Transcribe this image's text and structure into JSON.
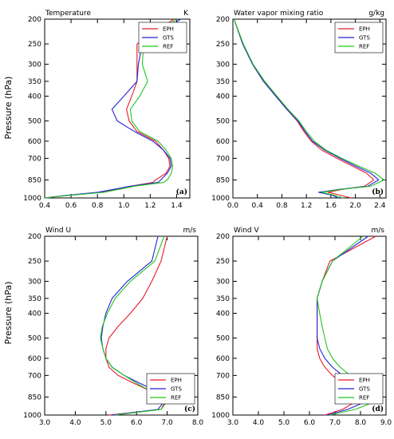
{
  "ylabel": "Pressure (hPa)",
  "colors": {
    "EPH": "#e8192c",
    "GTS": "#2323d8",
    "REF": "#22c422"
  },
  "chart_data": [
    {
      "type": "line",
      "title": "Temperature",
      "unit": "K",
      "panel_label": "(a)",
      "xlim": [
        0.4,
        1.5
      ],
      "xticks": [
        "0.4",
        "0.6",
        "0.8",
        "1.0",
        "1.2",
        "1.4"
      ],
      "xtick_values": [
        0.4,
        0.6,
        0.8,
        1.0,
        1.2,
        1.4
      ],
      "ylim": [
        1000,
        200
      ],
      "yticks": [
        200,
        250,
        300,
        350,
        400,
        500,
        600,
        700,
        850,
        1000
      ],
      "y": [
        1000,
        980,
        950,
        900,
        870,
        850,
        800,
        750,
        700,
        650,
        600,
        550,
        500,
        450,
        400,
        350,
        300,
        250,
        200
      ],
      "series": [
        {
          "name": "EPH",
          "x": [
            0.4,
            0.55,
            0.82,
            1.05,
            1.22,
            1.24,
            1.32,
            1.35,
            1.34,
            1.3,
            1.24,
            1.1,
            1.04,
            1.02,
            1.06,
            1.1,
            1.1,
            1.1,
            1.38
          ]
        },
        {
          "name": "GTS",
          "x": [
            0.4,
            0.54,
            0.8,
            1.05,
            1.26,
            1.28,
            1.33,
            1.36,
            1.35,
            1.3,
            1.22,
            1.08,
            0.95,
            0.91,
            1.0,
            1.1,
            1.11,
            1.14,
            1.43
          ]
        },
        {
          "name": "REF",
          "x": [
            0.4,
            0.56,
            0.85,
            1.08,
            1.3,
            1.33,
            1.36,
            1.37,
            1.36,
            1.32,
            1.26,
            1.12,
            1.06,
            1.05,
            1.12,
            1.18,
            1.14,
            1.15,
            1.4
          ]
        }
      ]
    },
    {
      "type": "line",
      "title": "Water vapor mixing ratio",
      "unit": "g/kg",
      "panel_label": "(b)",
      "xlim": [
        0.0,
        2.5
      ],
      "xticks": [
        "0.0",
        "0.4",
        "0.8",
        "1.2",
        "1.6",
        "2.0",
        "2.4"
      ],
      "xtick_values": [
        0.0,
        0.4,
        0.8,
        1.2,
        1.6,
        2.0,
        2.4
      ],
      "ylim": [
        1000,
        200
      ],
      "yticks": [
        200,
        250,
        300,
        350,
        400,
        500,
        600,
        700,
        850,
        1000
      ],
      "y": [
        1000,
        975,
        950,
        925,
        900,
        850,
        800,
        750,
        700,
        650,
        600,
        550,
        500,
        450,
        400,
        350,
        300,
        250,
        200
      ],
      "series": [
        {
          "name": "EPH",
          "x": [
            1.93,
            1.75,
            1.55,
            1.8,
            2.15,
            2.3,
            2.18,
            1.95,
            1.7,
            1.45,
            1.28,
            1.16,
            1.05,
            0.88,
            0.7,
            0.5,
            0.32,
            0.16,
            0.02
          ]
        },
        {
          "name": "GTS",
          "x": [
            1.72,
            1.62,
            1.4,
            1.75,
            2.2,
            2.38,
            2.25,
            2.0,
            1.75,
            1.5,
            1.3,
            1.18,
            1.06,
            0.88,
            0.7,
            0.5,
            0.32,
            0.16,
            0.02
          ]
        },
        {
          "name": "REF",
          "x": [
            1.8,
            1.65,
            1.45,
            1.78,
            2.25,
            2.47,
            2.32,
            2.05,
            1.78,
            1.52,
            1.33,
            1.2,
            1.08,
            0.9,
            0.72,
            0.52,
            0.33,
            0.17,
            0.02
          ]
        }
      ]
    },
    {
      "type": "line",
      "title": "Wind U",
      "unit": "m/s",
      "panel_label": "(c)",
      "xlim": [
        3.0,
        8.0
      ],
      "xticks": [
        "3.0",
        "4.0",
        "5.0",
        "6.0",
        "7.0",
        "8.0"
      ],
      "xtick_values": [
        3.0,
        4.0,
        5.0,
        6.0,
        7.0,
        8.0
      ],
      "ylim": [
        1000,
        200
      ],
      "yticks": [
        200,
        250,
        300,
        350,
        400,
        500,
        600,
        700,
        850,
        1000
      ],
      "y": [
        1000,
        950,
        900,
        850,
        800,
        750,
        700,
        650,
        600,
        550,
        500,
        450,
        400,
        350,
        300,
        250,
        200
      ],
      "series": [
        {
          "name": "EPH",
          "x": [
            5.1,
            6.8,
            6.9,
            6.8,
            6.4,
            5.9,
            5.4,
            5.1,
            5.0,
            5.0,
            5.1,
            5.4,
            5.8,
            6.2,
            6.5,
            6.8,
            7.0
          ]
        },
        {
          "name": "GTS",
          "x": [
            5.2,
            6.7,
            6.85,
            6.9,
            6.6,
            6.1,
            5.6,
            5.2,
            5.0,
            4.9,
            4.85,
            4.9,
            5.0,
            5.2,
            5.7,
            6.5,
            6.7
          ]
        },
        {
          "name": "REF",
          "x": [
            5.3,
            6.8,
            6.95,
            6.7,
            6.4,
            6.0,
            5.6,
            5.2,
            5.0,
            4.9,
            4.82,
            4.88,
            5.05,
            5.3,
            5.8,
            6.6,
            6.9
          ]
        }
      ]
    },
    {
      "type": "line",
      "title": "Wind V",
      "unit": "m/s",
      "panel_label": "(d)",
      "xlim": [
        3.0,
        9.0
      ],
      "xticks": [
        "3.0",
        "4.0",
        "5.0",
        "6.0",
        "7.0",
        "8.0",
        "9.0"
      ],
      "xtick_values": [
        3.0,
        4.0,
        5.0,
        6.0,
        7.0,
        8.0,
        9.0
      ],
      "ylim": [
        1000,
        200
      ],
      "yticks": [
        200,
        250,
        300,
        350,
        400,
        500,
        600,
        700,
        850,
        1000
      ],
      "y": [
        1000,
        950,
        900,
        850,
        800,
        750,
        700,
        650,
        600,
        550,
        500,
        450,
        400,
        350,
        300,
        250,
        200
      ],
      "series": [
        {
          "name": "EPH",
          "x": [
            6.6,
            7.3,
            7.7,
            7.75,
            7.6,
            7.3,
            6.9,
            6.6,
            6.4,
            6.3,
            6.3,
            6.3,
            6.3,
            6.3,
            6.5,
            6.8,
            8.6
          ]
        },
        {
          "name": "GTS",
          "x": [
            6.7,
            7.5,
            8.05,
            8.2,
            8.1,
            7.8,
            7.3,
            6.9,
            6.6,
            6.4,
            6.3,
            6.3,
            6.3,
            6.3,
            6.5,
            6.9,
            8.3
          ]
        },
        {
          "name": "REF",
          "x": [
            6.8,
            7.8,
            8.4,
            8.5,
            8.4,
            8.1,
            7.6,
            7.2,
            6.9,
            6.7,
            6.6,
            6.5,
            6.4,
            6.3,
            6.5,
            6.9,
            8.1
          ]
        }
      ]
    }
  ]
}
